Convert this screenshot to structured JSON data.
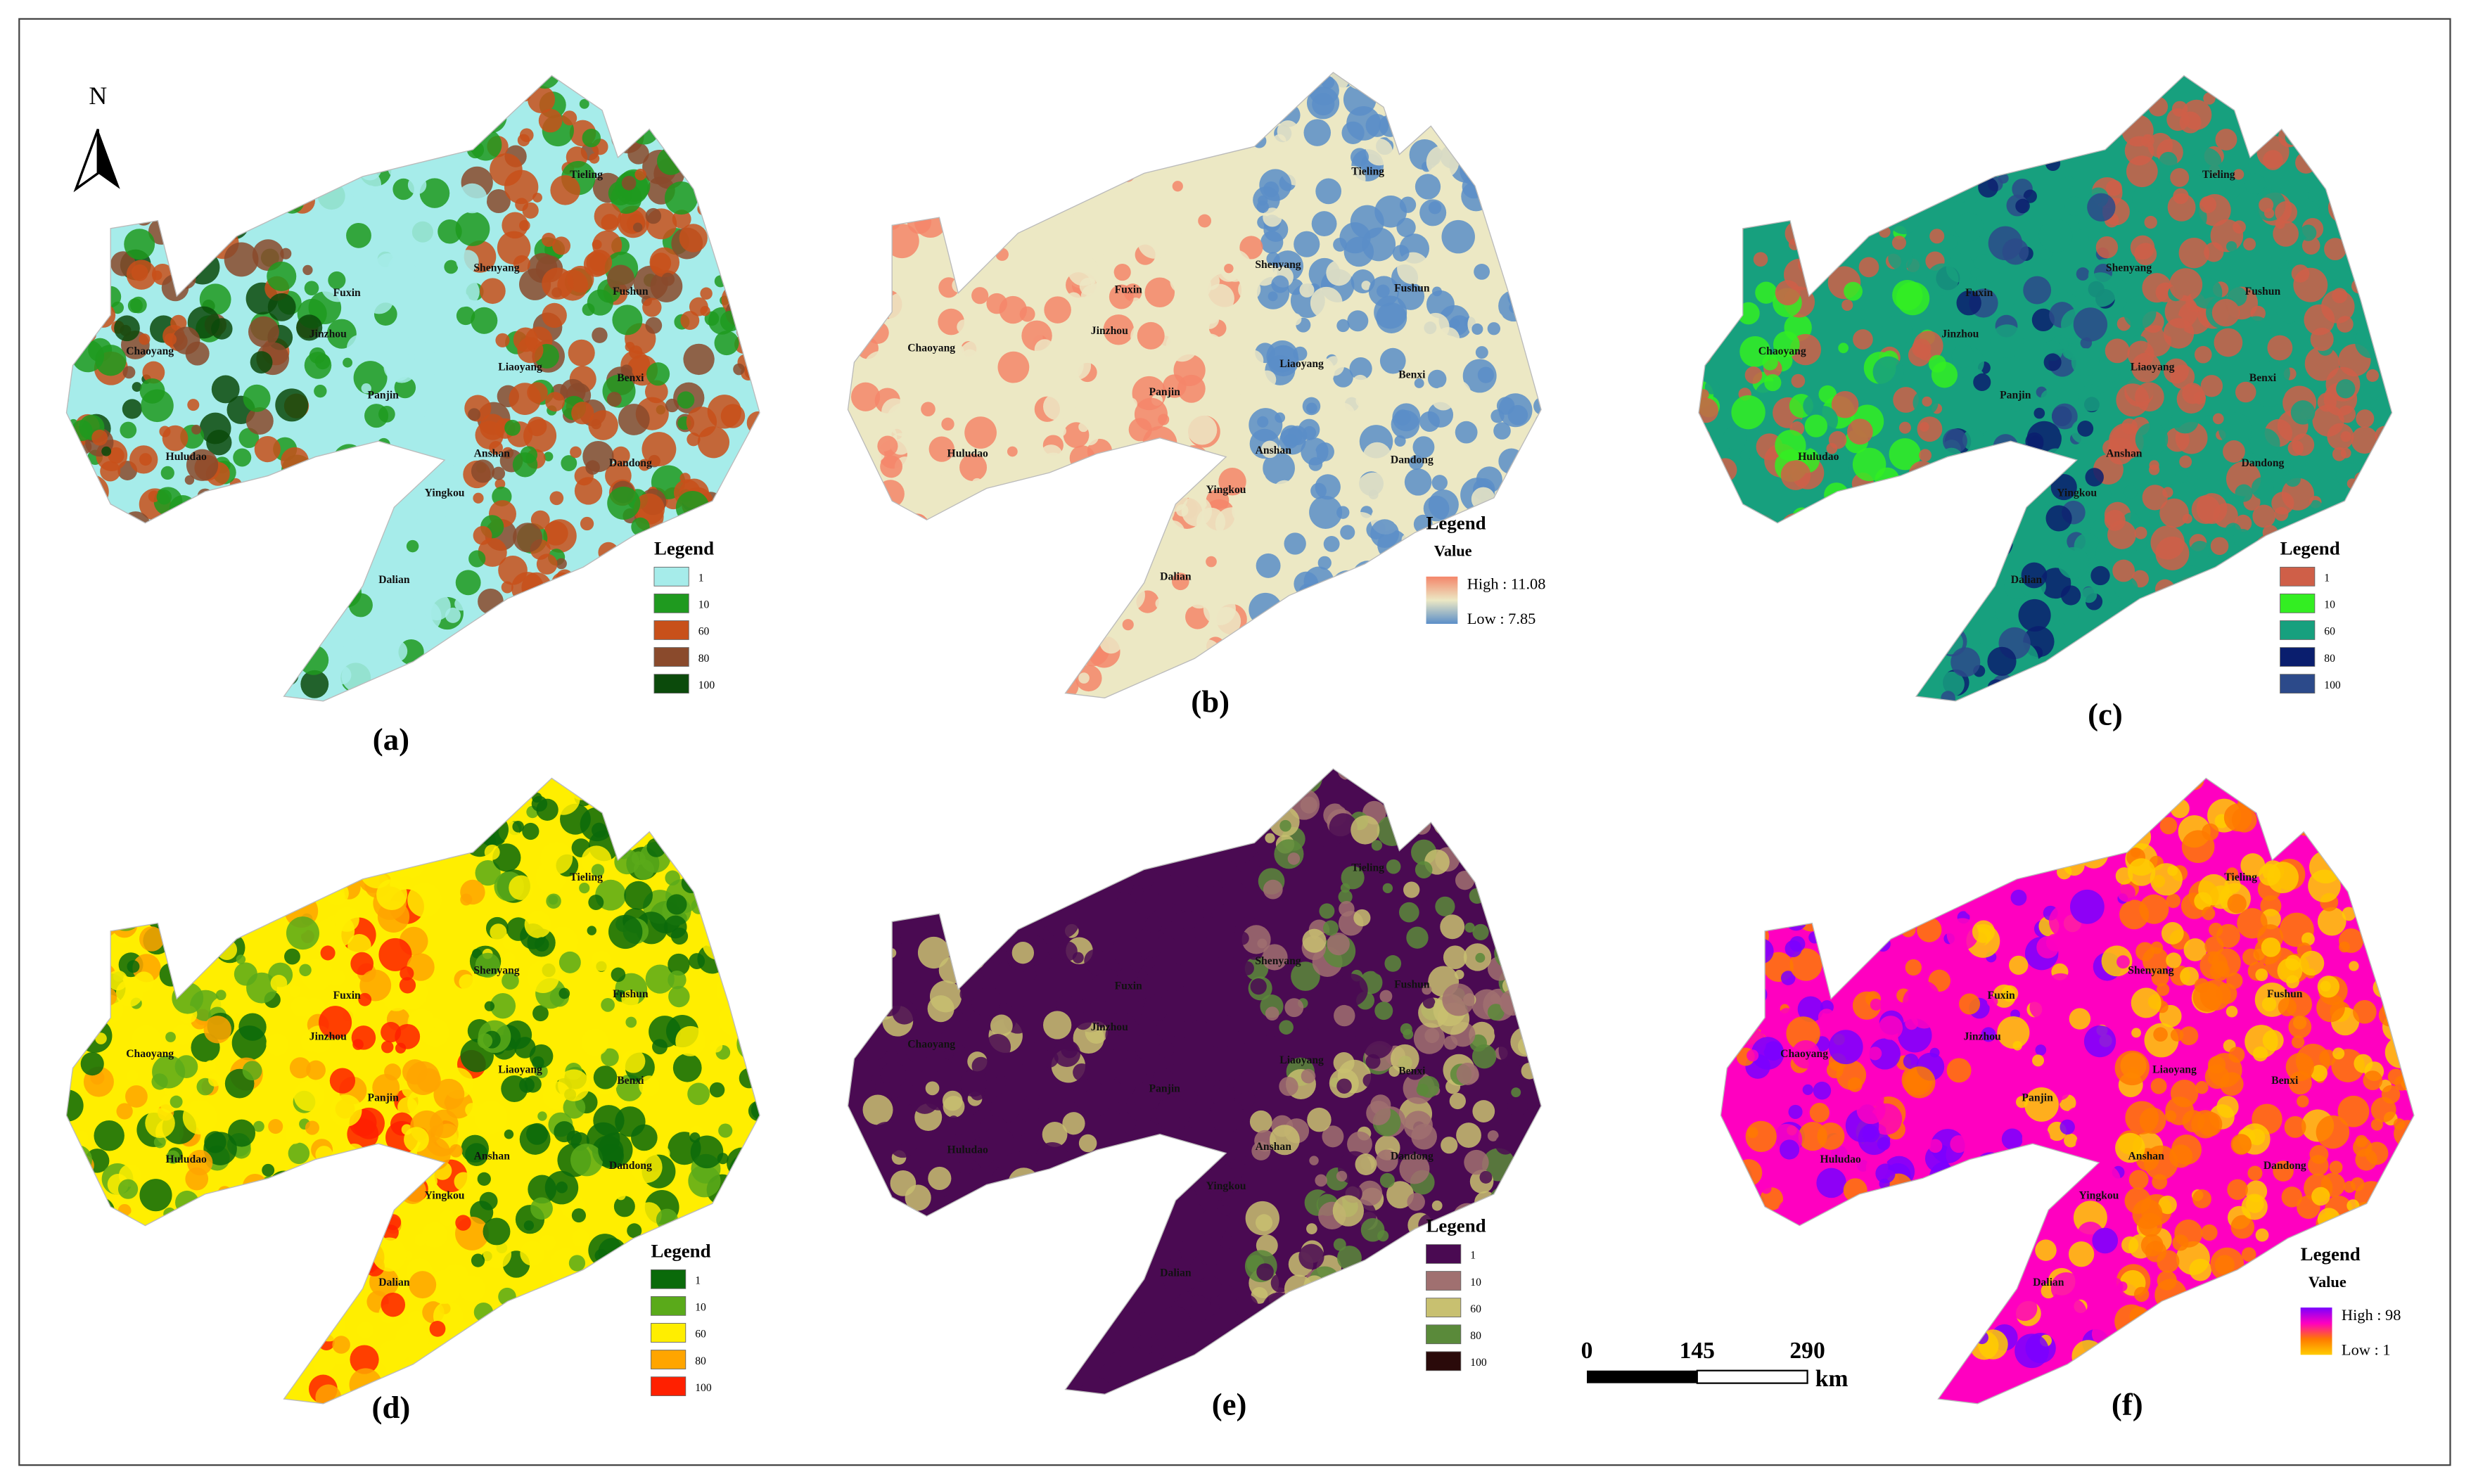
{
  "north_label": "N",
  "panels": [
    {
      "label": "(a)",
      "cities": [
        "Tieling",
        "Shenyang",
        "Fuxin",
        "Fushun",
        "Chaoyang",
        "Jinzhou",
        "Liaoyang",
        "Benxi",
        "Panjin",
        "Huludao",
        "Anshan",
        "Dandong",
        "Yingkou",
        "Dalian"
      ],
      "legend": {
        "title": "Legend",
        "items": [
          {
            "label": "1",
            "color": "#a6ecea"
          },
          {
            "label": "10",
            "color": "#1f9a1f"
          },
          {
            "label": "60",
            "color": "#c8501a"
          },
          {
            "label": "80",
            "color": "#8a4a2c"
          },
          {
            "label": "100",
            "color": "#0b4a0b"
          }
        ]
      }
    },
    {
      "label": "(b)",
      "cities": [
        "Tieling",
        "Shenyang",
        "Fuxin",
        "Fushun",
        "Chaoyang",
        "Jinzhou",
        "Liaoyang",
        "Benxi",
        "Panjin",
        "Huludao",
        "Anshan",
        "Dandong",
        "Yingkou",
        "Dalian"
      ],
      "legend": {
        "title": "Legend",
        "subtitle": "Value",
        "high": "High : 11.08",
        "low": "Low : 7.85",
        "colors": [
          "#f4866a",
          "#ece8c4",
          "#5b8ec8"
        ]
      }
    },
    {
      "label": "(c)",
      "cities": [
        "Tieling",
        "Shenyang",
        "Fuxin",
        "Fushun",
        "Chaoyang",
        "Jinzhou",
        "Liaoyang",
        "Benxi",
        "Panjin",
        "Huludao",
        "Anshan",
        "Dandong",
        "Yingkou",
        "Dalian"
      ],
      "legend": {
        "title": "Legend",
        "items": [
          {
            "label": "1",
            "color": "#cf5f48"
          },
          {
            "label": "10",
            "color": "#33ee22"
          },
          {
            "label": "60",
            "color": "#17a07e"
          },
          {
            "label": "80",
            "color": "#0a1e6e"
          },
          {
            "label": "100",
            "color": "#2c4a8a"
          }
        ]
      }
    },
    {
      "label": "(d)",
      "cities": [
        "Tieling",
        "Shenyang",
        "Fuxin",
        "Fushun",
        "Chaoyang",
        "Jinzhou",
        "Liaoyang",
        "Benxi",
        "Panjin",
        "Huludao",
        "Anshan",
        "Dandong",
        "Yingkou",
        "Dalian"
      ],
      "legend": {
        "title": "Legend",
        "items": [
          {
            "label": "1",
            "color": "#0a6a0a"
          },
          {
            "label": "10",
            "color": "#5aaa1a"
          },
          {
            "label": "60",
            "color": "#ffee00"
          },
          {
            "label": "80",
            "color": "#ffa500"
          },
          {
            "label": "100",
            "color": "#ff2000"
          }
        ]
      }
    },
    {
      "label": "(e)",
      "cities": [
        "Tieling",
        "Shenyang",
        "Fuxin",
        "Fushun",
        "Chaoyang",
        "Jinzhou",
        "Liaoyang",
        "Benxi",
        "Panjin",
        "Huludao",
        "Anshan",
        "Dandong",
        "Yingkou",
        "Dalian"
      ],
      "legend": {
        "title": "Legend",
        "items": [
          {
            "label": "1",
            "color": "#4a0a52"
          },
          {
            "label": "10",
            "color": "#a07070"
          },
          {
            "label": "60",
            "color": "#c8c070"
          },
          {
            "label": "80",
            "color": "#5a8a3a"
          },
          {
            "label": "100",
            "color": "#2a0a0a"
          }
        ]
      }
    },
    {
      "label": "(f)",
      "cities": [
        "Tieling",
        "Shenyang",
        "Fuxin",
        "Fushun",
        "Chaoyang",
        "Jinzhou",
        "Liaoyang",
        "Benxi",
        "Panjin",
        "Huludao",
        "Anshan",
        "Dandong",
        "Yingkou",
        "Dalian"
      ],
      "legend": {
        "title": "Legend",
        "subtitle": "Value",
        "high": "High : 98",
        "low": "Low : 1",
        "colors": [
          "#7a00ff",
          "#ff00c0",
          "#ff7a00",
          "#ffcc00"
        ]
      }
    }
  ],
  "scale_bar": {
    "ticks": [
      "0",
      "145",
      "290"
    ],
    "unit": "km"
  }
}
